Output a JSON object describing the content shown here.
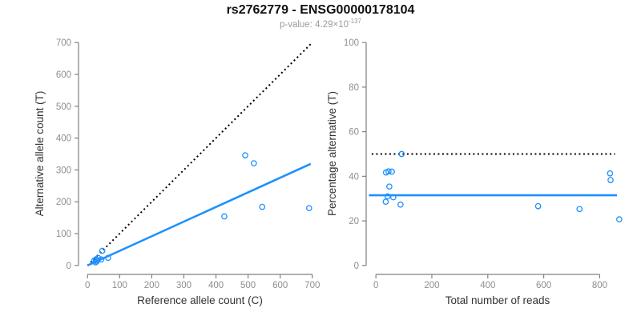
{
  "header": {
    "title": "rs2762779 - ENSG00000178104",
    "pvalue_prefix": "p-value: 4.29×10",
    "pvalue_exponent": "-137"
  },
  "colors": {
    "point_blue": "#1E90FF",
    "fit_line_blue": "#1E90FF",
    "identity_black": "#000000",
    "axis": "#808080",
    "tick_label": "#8e8e8e",
    "axis_title": "#333333",
    "subtitle": "#9a9a9a"
  },
  "chart_data": [
    {
      "type": "scatter",
      "name": "ref-vs-alt-count",
      "xlabel": "Reference allele count (C)",
      "ylabel": "Alternative allele count (T)",
      "xlim": [
        0,
        700
      ],
      "ylim": [
        0,
        700
      ],
      "xticks": [
        0,
        100,
        200,
        300,
        400,
        500,
        600,
        700
      ],
      "yticks": [
        0,
        100,
        200,
        300,
        400,
        500,
        600,
        700
      ],
      "grid": false,
      "marker": "open-circle",
      "points": [
        [
          21,
          15
        ],
        [
          25,
          10
        ],
        [
          26,
          19
        ],
        [
          29,
          13
        ],
        [
          31,
          17
        ],
        [
          33,
          24
        ],
        [
          43,
          19
        ],
        [
          46,
          46
        ],
        [
          64,
          24
        ],
        [
          426,
          154
        ],
        [
          491,
          346
        ],
        [
          518,
          321
        ],
        [
          544,
          184
        ],
        [
          690,
          180
        ]
      ],
      "lines": [
        {
          "name": "identity-line",
          "label": "y = x (dotted)",
          "x": [
            0,
            700
          ],
          "y": [
            0,
            700
          ],
          "color": "#000000",
          "width": 2,
          "dash": "2 3.5"
        },
        {
          "name": "fit-line",
          "label": "regression slope 0.459",
          "x": [
            0,
            695
          ],
          "y": [
            0,
            319
          ],
          "color": "#1E90FF",
          "width": 2.6,
          "dash": ""
        }
      ]
    },
    {
      "type": "scatter",
      "name": "reads-vs-percentage",
      "xlabel": "Total number of reads",
      "ylabel": "Percentage alternative (T)",
      "xlim": [
        0,
        870
      ],
      "ylim": [
        0,
        100
      ],
      "xticks": [
        0,
        200,
        400,
        600,
        800
      ],
      "yticks": [
        0,
        20,
        40,
        60,
        80,
        100
      ],
      "grid": false,
      "marker": "open-circle",
      "points": [
        [
          36,
          41.7
        ],
        [
          35,
          28.6
        ],
        [
          45,
          42.2
        ],
        [
          42,
          31.0
        ],
        [
          48,
          35.4
        ],
        [
          57,
          42.1
        ],
        [
          62,
          30.6
        ],
        [
          92,
          50.0
        ],
        [
          88,
          27.3
        ],
        [
          580,
          26.6
        ],
        [
          837,
          41.3
        ],
        [
          839,
          38.3
        ],
        [
          728,
          25.3
        ],
        [
          870,
          20.7
        ]
      ],
      "lines": [
        {
          "name": "fifty-percent-line",
          "label": "50% reference line (dotted)",
          "x": [
            -15,
            855
          ],
          "y": [
            50,
            50
          ],
          "color": "#000000",
          "width": 2,
          "dash": "2 3.5"
        },
        {
          "name": "mean-percentage-line",
          "label": "overall alternative fraction 31.5%",
          "x": [
            -25,
            862
          ],
          "y": [
            31.5,
            31.5
          ],
          "color": "#1E90FF",
          "width": 2.6,
          "dash": ""
        }
      ]
    }
  ]
}
